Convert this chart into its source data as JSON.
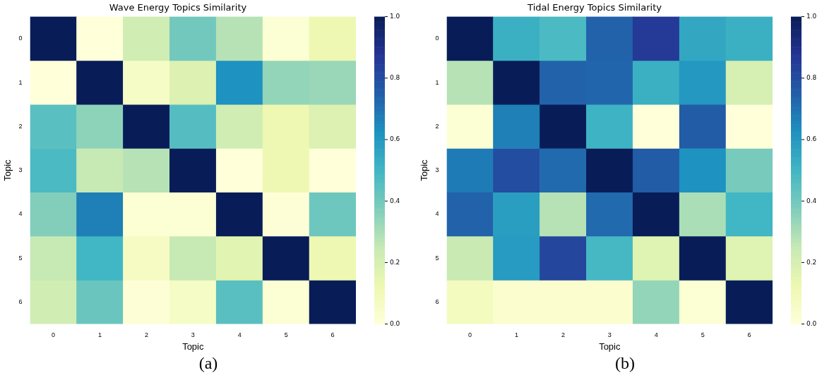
{
  "chart_data": [
    {
      "type": "heatmap",
      "title": "Wave Energy Topics Similarity",
      "xlabel": "Topic",
      "ylabel": "Topic",
      "categories": [
        "0",
        "1",
        "2",
        "3",
        "4",
        "5",
        "6"
      ],
      "y_categories": [
        "0",
        "1",
        "2",
        "3",
        "4",
        "5",
        "6"
      ],
      "cells": [
        [
          1,
          0.0,
          0.22,
          0.4,
          0.28,
          0.02,
          0.12
        ],
        [
          0.0,
          1,
          0.06,
          0.18,
          0.62,
          0.34,
          0.33
        ],
        [
          0.45,
          0.35,
          1,
          0.46,
          0.22,
          0.12,
          0.18
        ],
        [
          0.48,
          0.25,
          0.28,
          1,
          0.0,
          0.12,
          0.0
        ],
        [
          0.37,
          0.67,
          0.02,
          0.02,
          1,
          0.01,
          0.41
        ],
        [
          0.25,
          0.5,
          0.07,
          0.25,
          0.16,
          1,
          0.12
        ],
        [
          0.22,
          0.42,
          0.01,
          0.06,
          0.45,
          0.02,
          1
        ]
      ],
      "clim": [
        0,
        1
      ],
      "cticks": [
        {
          "value": 0,
          "label": "0.0"
        },
        {
          "value": 0.2,
          "label": "0.2"
        },
        {
          "value": 0.4,
          "label": "0.4"
        },
        {
          "value": 0.6,
          "label": "0.6"
        },
        {
          "value": 0.8,
          "label": "0.8"
        },
        {
          "value": 1,
          "label": "1.0"
        }
      ],
      "annotations": [
        "(a)"
      ]
    },
    {
      "type": "heatmap",
      "title": "Tidal Energy Topics Similarity",
      "xlabel": "Topic",
      "ylabel": "Topic",
      "categories": [
        "0",
        "1",
        "2",
        "3",
        "4",
        "5",
        "6"
      ],
      "y_categories": [
        "0",
        "1",
        "2",
        "3",
        "4",
        "5",
        "6"
      ],
      "cells": [
        [
          1,
          0.52,
          0.48,
          0.74,
          0.86,
          0.55,
          0.52
        ],
        [
          0.28,
          1,
          0.74,
          0.73,
          0.52,
          0.6,
          0.2
        ],
        [
          0.02,
          0.67,
          1,
          0.51,
          0.0,
          0.76,
          0.0
        ],
        [
          0.68,
          0.8,
          0.72,
          1,
          0.76,
          0.62,
          0.39
        ],
        [
          0.74,
          0.58,
          0.28,
          0.72,
          1,
          0.3,
          0.5
        ],
        [
          0.24,
          0.59,
          0.82,
          0.49,
          0.17,
          1,
          0.17
        ],
        [
          0.08,
          0.03,
          0.03,
          0.03,
          0.34,
          0.02,
          1
        ]
      ],
      "clim": [
        0,
        1
      ],
      "cticks": [
        {
          "value": 0,
          "label": "0.0"
        },
        {
          "value": 0.2,
          "label": "0.2"
        },
        {
          "value": 0.4,
          "label": "0.4"
        },
        {
          "value": 0.6,
          "label": "0.6"
        },
        {
          "value": 0.8,
          "label": "0.8"
        },
        {
          "value": 1,
          "label": "1.0"
        }
      ],
      "annotations": [
        "(b)"
      ]
    }
  ]
}
